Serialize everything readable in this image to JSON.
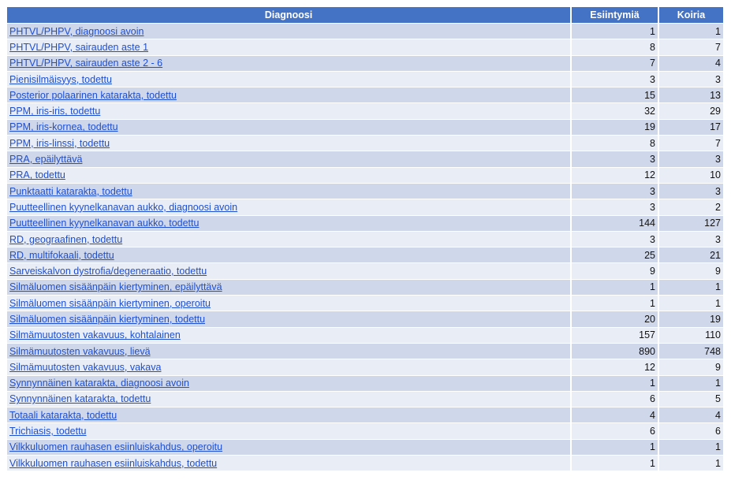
{
  "table": {
    "headers": {
      "diagnosis": "Diagnoosi",
      "occurrences": "Esiintymiä",
      "dogs": "Koiria"
    },
    "rows": [
      {
        "diagnosis": "PHTVL/PHPV, diagnoosi avoin",
        "occurrences": "1",
        "dogs": "1"
      },
      {
        "diagnosis": "PHTVL/PHPV, sairauden aste 1",
        "occurrences": "8",
        "dogs": "7"
      },
      {
        "diagnosis": "PHTVL/PHPV, sairauden aste 2 - 6",
        "occurrences": "7",
        "dogs": "4"
      },
      {
        "diagnosis": "Pienisilmäisyys, todettu",
        "occurrences": "3",
        "dogs": "3"
      },
      {
        "diagnosis": "Posterior polaarinen katarakta, todettu",
        "occurrences": "15",
        "dogs": "13"
      },
      {
        "diagnosis": "PPM, iris-iris, todettu",
        "occurrences": "32",
        "dogs": "29"
      },
      {
        "diagnosis": "PPM, iris-kornea, todettu",
        "occurrences": "19",
        "dogs": "17"
      },
      {
        "diagnosis": "PPM, iris-linssi, todettu",
        "occurrences": "8",
        "dogs": "7"
      },
      {
        "diagnosis": "PRA, epäilyttävä",
        "occurrences": "3",
        "dogs": "3"
      },
      {
        "diagnosis": "PRA, todettu",
        "occurrences": "12",
        "dogs": "10"
      },
      {
        "diagnosis": "Punktaatti katarakta, todettu",
        "occurrences": "3",
        "dogs": "3"
      },
      {
        "diagnosis": "Puutteellinen kyynelkanavan aukko, diagnoosi avoin",
        "occurrences": "3",
        "dogs": "2"
      },
      {
        "diagnosis": "Puutteellinen kyynelkanavan aukko, todettu",
        "occurrences": "144",
        "dogs": "127"
      },
      {
        "diagnosis": "RD, geograafinen, todettu",
        "occurrences": "3",
        "dogs": "3"
      },
      {
        "diagnosis": "RD, multifokaali, todettu",
        "occurrences": "25",
        "dogs": "21"
      },
      {
        "diagnosis": "Sarveiskalvon dystrofia/degeneraatio, todettu",
        "occurrences": "9",
        "dogs": "9"
      },
      {
        "diagnosis": "Silmäluomen sisäänpäin kiertyminen, epäilyttävä",
        "occurrences": "1",
        "dogs": "1"
      },
      {
        "diagnosis": "Silmäluomen sisäänpäin kiertyminen, operoitu",
        "occurrences": "1",
        "dogs": "1"
      },
      {
        "diagnosis": "Silmäluomen sisäänpäin kiertyminen, todettu",
        "occurrences": "20",
        "dogs": "19"
      },
      {
        "diagnosis": "Silmämuutosten vakavuus, kohtalainen",
        "occurrences": "157",
        "dogs": "110"
      },
      {
        "diagnosis": "Silmämuutosten vakavuus, lievä",
        "occurrences": "890",
        "dogs": "748"
      },
      {
        "diagnosis": "Silmämuutosten vakavuus, vakava",
        "occurrences": "12",
        "dogs": "9"
      },
      {
        "diagnosis": "Synnynnäinen katarakta, diagnoosi avoin",
        "occurrences": "1",
        "dogs": "1"
      },
      {
        "diagnosis": "Synnynnäinen katarakta, todettu",
        "occurrences": "6",
        "dogs": "5"
      },
      {
        "diagnosis": "Totaali katarakta, todettu",
        "occurrences": "4",
        "dogs": "4"
      },
      {
        "diagnosis": "Trichiasis, todettu",
        "occurrences": "6",
        "dogs": "6"
      },
      {
        "diagnosis": "Vilkkuluomen rauhasen esiinluiskahdus, operoitu",
        "occurrences": "1",
        "dogs": "1"
      },
      {
        "diagnosis": "Vilkkuluomen rauhasen esiinluiskahdus, todettu",
        "occurrences": "1",
        "dogs": "1"
      }
    ]
  },
  "colors": {
    "header_bg": "#4472c4",
    "header_text": "#ffffff",
    "row_dark": "#cfd7ea",
    "row_light": "#e9edf6",
    "link": "#1f4fd1"
  }
}
